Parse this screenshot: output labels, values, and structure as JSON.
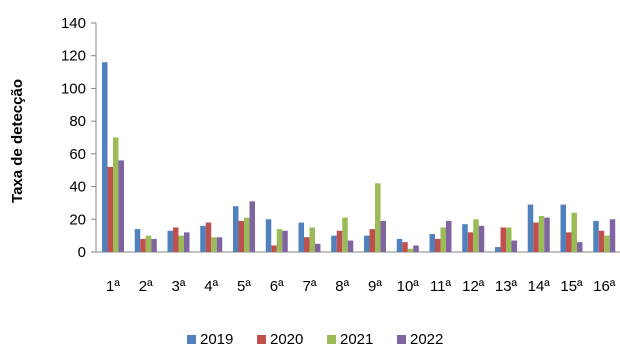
{
  "chart_data": {
    "type": "bar",
    "title": "",
    "xlabel": "",
    "ylabel": "Taxa de detecção",
    "ylim": [
      0,
      140
    ],
    "yticks": [
      0,
      20,
      40,
      60,
      80,
      100,
      120,
      140
    ],
    "grid": false,
    "legend_position": "bottom",
    "categories": [
      "1ª",
      "2ª",
      "3ª",
      "4ª",
      "5ª",
      "6ª",
      "7ª",
      "8ª",
      "9ª",
      "10ª",
      "11ª",
      "12ª",
      "13ª",
      "14ª",
      "15ª",
      "16ª"
    ],
    "series": [
      {
        "name": "2019",
        "color": "#4F81BD",
        "values": [
          116,
          14,
          13,
          16,
          28,
          20,
          18,
          10,
          10,
          8,
          11,
          17,
          3,
          29,
          29,
          19
        ]
      },
      {
        "name": "2020",
        "color": "#C0504D",
        "values": [
          52,
          8,
          15,
          18,
          19,
          4,
          9,
          13,
          14,
          6,
          8,
          12,
          15,
          18,
          12,
          13
        ]
      },
      {
        "name": "2021",
        "color": "#9BBB59",
        "values": [
          70,
          10,
          10,
          9,
          21,
          14,
          15,
          21,
          42,
          2,
          15,
          20,
          15,
          22,
          24,
          10
        ]
      },
      {
        "name": "2022",
        "color": "#8064A2",
        "values": [
          56,
          8,
          12,
          9,
          31,
          13,
          5,
          7,
          19,
          4,
          19,
          16,
          7,
          21,
          6,
          20
        ]
      }
    ]
  }
}
